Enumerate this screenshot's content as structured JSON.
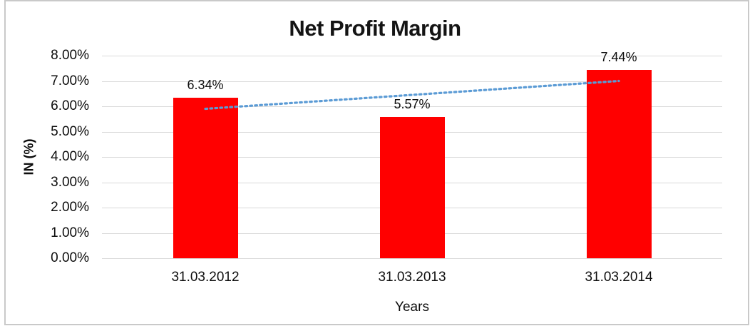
{
  "chart_data": {
    "type": "bar",
    "title": "Net Profit Margin",
    "categories": [
      "31.03.2012",
      "31.03.2013",
      "31.03.2014"
    ],
    "values": [
      6.34,
      5.57,
      7.44
    ],
    "data_labels": [
      "6.34%",
      "5.57%",
      "7.44%"
    ],
    "xlabel": "Years",
    "ylabel": "IN (%)",
    "ylim": [
      0,
      8
    ],
    "ytick_step": 1,
    "ytick_labels": [
      "0.00%",
      "1.00%",
      "2.00%",
      "3.00%",
      "4.00%",
      "5.00%",
      "6.00%",
      "7.00%",
      "8.00%"
    ],
    "grid": true,
    "legend": "none",
    "bar_color": "#ff0000",
    "gridline_color": "#d9d9d9",
    "trendline": {
      "type": "linear",
      "style": "dotted",
      "color": "#5b9bd5"
    }
  }
}
